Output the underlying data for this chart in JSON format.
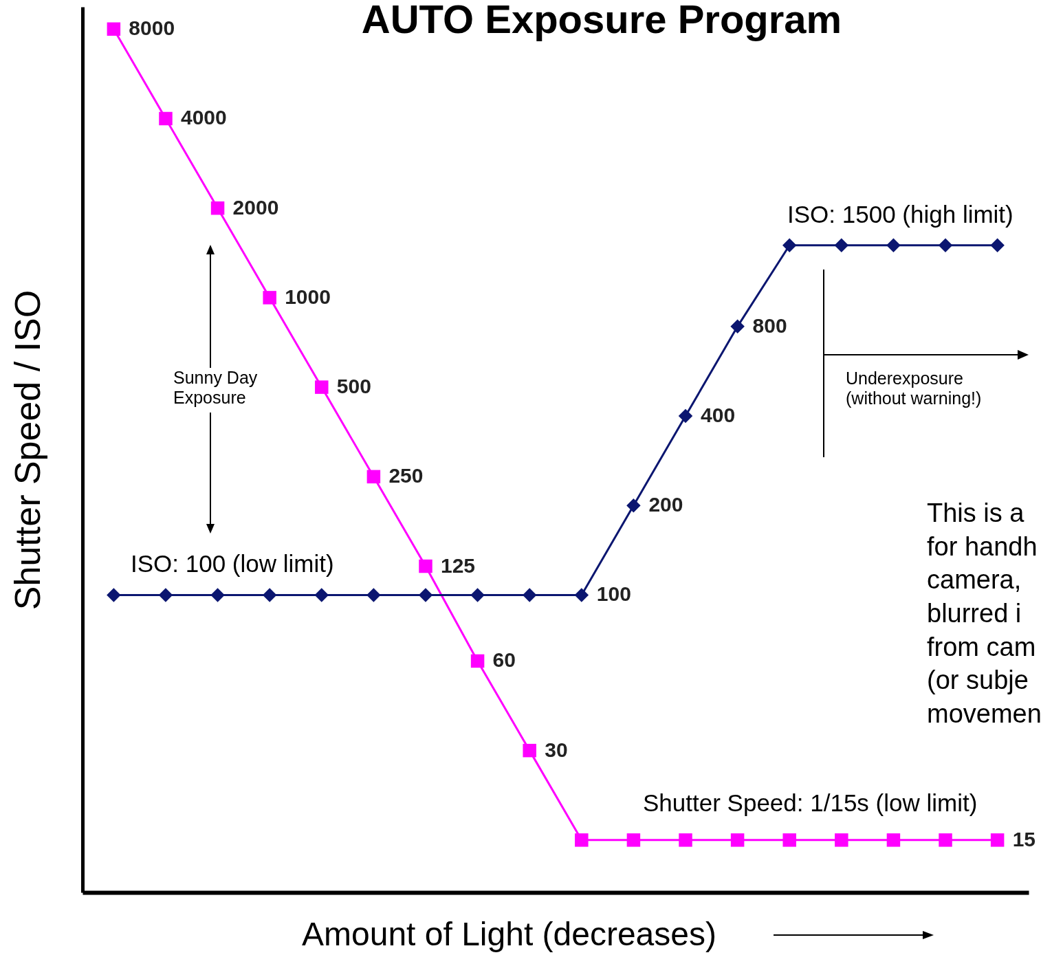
{
  "chart_data": {
    "type": "line",
    "title": "AUTO Exposure Program",
    "xlabel": "Amount of Light (decreases)",
    "ylabel": "Shutter Speed / ISO",
    "categories": [
      null,
      null,
      null,
      null,
      null,
      null,
      null,
      null,
      null,
      null,
      null,
      null,
      null,
      null,
      null,
      null,
      null,
      null
    ],
    "series": [
      {
        "color": "#ff00ff",
        "marker": "square",
        "values": [
          8000,
          4000,
          2000,
          1000,
          500,
          250,
          125,
          60,
          30,
          15,
          15,
          15,
          15,
          15,
          15,
          15,
          15,
          15
        ],
        "value_labels": [
          "8000",
          "4000",
          "2000",
          "1000",
          "500",
          "250",
          "125",
          "60",
          "30",
          null,
          null,
          null,
          null,
          null,
          null,
          null,
          null,
          "15"
        ]
      },
      {
        "color": "#0b1670",
        "marker": "diamond",
        "values": [
          100,
          100,
          100,
          100,
          100,
          100,
          100,
          100,
          100,
          100,
          200,
          400,
          800,
          1500,
          1500,
          1500,
          1500,
          1500
        ],
        "value_labels": [
          null,
          null,
          null,
          null,
          null,
          null,
          null,
          null,
          null,
          "100",
          "200",
          "400",
          "800",
          null,
          null,
          null,
          null,
          null
        ]
      }
    ],
    "log": "y",
    "ylim": [
      10,
      9500
    ],
    "tick_labels": false,
    "grid": false,
    "annotations": [
      "Sunny Day Exposure",
      "ISO: 100 (low limit)",
      "ISO: 1500 (high limit)",
      "Underexposure (without warning!)",
      "Shutter Speed: 1/15s (low limit)",
      "This is a\nfor handh\ncamera,\nblurred i\nfrom cam\n(or subje\nmovemen"
    ]
  }
}
